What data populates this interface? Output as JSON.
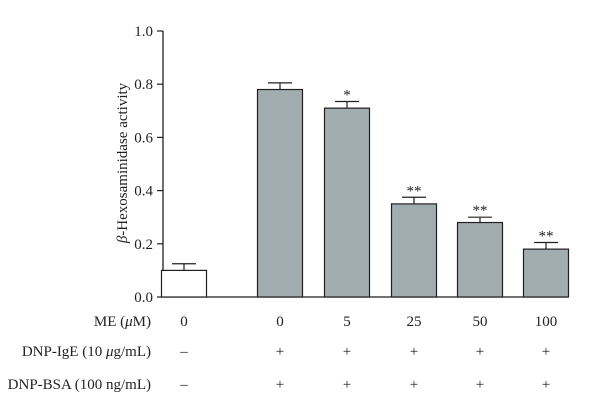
{
  "chart_data": {
    "type": "bar",
    "title": "",
    "xlabel": "",
    "ylabel": "β-Hexosaminidase activity",
    "ylabel_parts": {
      "symbol": "β",
      "text": "-Hexosaminidase activity"
    },
    "ylim": [
      0,
      1.0
    ],
    "yticks": [
      "0.0",
      "0.2",
      "0.4",
      "0.6",
      "0.8",
      "1.0"
    ],
    "yticks_values": [
      0,
      0.2,
      0.4,
      0.6,
      0.8,
      1.0
    ],
    "grid": false,
    "legend": "none",
    "categories": [
      "0",
      "0",
      "5",
      "25",
      "50",
      "100"
    ],
    "values": [
      0.1,
      0.78,
      0.71,
      0.35,
      0.28,
      0.18
    ],
    "errors": [
      0.025,
      0.025,
      0.025,
      0.025,
      0.02,
      0.025
    ],
    "significance": [
      "",
      "",
      "*",
      "**",
      "**",
      "**"
    ],
    "bar_fills": [
      "#ffffff",
      "#a2adb0",
      "#a2adb0",
      "#a2adb0",
      "#a2adb0",
      "#a2adb0"
    ],
    "bar_stroke": "#231f20",
    "treatment_rows": [
      {
        "label_main": "ME (",
        "label_sym": "μ",
        "label_tail": "M)",
        "values": [
          "0",
          "0",
          "5",
          "25",
          "50",
          "100"
        ]
      },
      {
        "label_main": "DNP-IgE (10 ",
        "label_sym": "μ",
        "label_tail": "g/mL)",
        "values": [
          "–",
          "+",
          "+",
          "+",
          "+",
          "+"
        ]
      },
      {
        "label_main": "DNP-BSA (100 ng/mL)",
        "label_sym": "",
        "label_tail": "",
        "values": [
          "–",
          "+",
          "+",
          "+",
          "+",
          "+"
        ]
      }
    ]
  }
}
